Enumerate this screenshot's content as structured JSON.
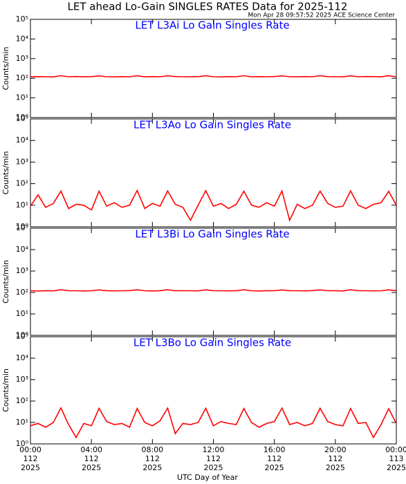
{
  "title": "LET ahead Lo-Gain SINGLES RATES Data for 2025-112",
  "timestamp": "Mon Apr 28 09:57:52 2025 ACE Science Center",
  "xlabel": "UTC Day of Year",
  "chart_data": [
    {
      "type": "line",
      "title": "LET L3Ai Lo Gain Singles Rate",
      "ylabel": "Counts/min",
      "color": "#ff0000",
      "ylog": true,
      "xlim": [
        0,
        24
      ],
      "xticks": [
        0,
        4,
        8,
        12,
        16,
        20,
        24
      ],
      "ylim": [
        1,
        100000
      ],
      "yticks": [
        {
          "value": 1,
          "label": "10⁰"
        },
        {
          "value": 10,
          "label": "10¹"
        },
        {
          "value": 100,
          "label": "10²"
        },
        {
          "value": 1000,
          "label": "10³"
        },
        {
          "value": 10000,
          "label": "10⁴"
        },
        {
          "value": 100000,
          "label": "10⁵"
        }
      ],
      "x": [
        0,
        0.5,
        1,
        1.5,
        2,
        2.5,
        3,
        3.5,
        4,
        4.5,
        5,
        5.5,
        6,
        6.5,
        7,
        7.5,
        8,
        8.5,
        9,
        9.5,
        10,
        10.5,
        11,
        11.5,
        12,
        12.5,
        13,
        13.5,
        14,
        14.5,
        15,
        15.5,
        16,
        16.5,
        17,
        17.5,
        18,
        18.5,
        19,
        19.5,
        20,
        20.5,
        21,
        21.5,
        22,
        22.5,
        23,
        23.5,
        24
      ],
      "values": [
        119,
        121,
        120,
        118,
        135,
        120,
        122,
        119,
        121,
        133,
        120,
        118,
        121,
        120,
        134,
        119,
        121,
        120,
        133,
        122,
        120,
        119,
        121,
        134,
        120,
        118,
        121,
        120,
        135,
        119,
        121,
        120,
        122,
        133,
        120,
        119,
        121,
        120,
        134,
        121,
        120,
        119,
        133,
        120,
        122,
        121,
        119,
        134,
        120
      ]
    },
    {
      "type": "line",
      "title": "LET L3Ao Lo Gain Singles Rate",
      "ylabel": "Counts/min",
      "color": "#ff0000",
      "ylog": true,
      "xlim": [
        0,
        24
      ],
      "xticks": [
        0,
        4,
        8,
        12,
        16,
        20,
        24
      ],
      "ylim": [
        1,
        100000
      ],
      "yticks": [
        {
          "value": 1,
          "label": "10⁰"
        },
        {
          "value": 10,
          "label": "10¹"
        },
        {
          "value": 100,
          "label": "10²"
        },
        {
          "value": 1000,
          "label": "10³"
        },
        {
          "value": 10000,
          "label": "10⁴"
        },
        {
          "value": 100000,
          "label": "10⁵"
        }
      ],
      "x": [
        0,
        0.5,
        1,
        1.5,
        2,
        2.5,
        3,
        3.5,
        4,
        4.5,
        5,
        5.5,
        6,
        6.5,
        7,
        7.5,
        8,
        8.5,
        9,
        9.5,
        10,
        10.5,
        11,
        11.5,
        12,
        12.5,
        13,
        13.5,
        14,
        14.5,
        15,
        15.5,
        16,
        16.5,
        17,
        17.5,
        18,
        18.5,
        19,
        19.5,
        20,
        20.5,
        21,
        21.5,
        22,
        22.5,
        23,
        23.5,
        24
      ],
      "values": [
        9,
        30,
        8,
        12,
        45,
        7,
        11,
        10,
        6,
        45,
        9,
        13,
        8,
        10,
        48,
        7,
        12,
        9,
        46,
        11,
        8,
        2,
        10,
        47,
        9,
        12,
        7,
        11,
        45,
        10,
        8,
        13,
        9,
        46,
        2,
        11,
        7,
        10,
        45,
        12,
        8,
        9,
        46,
        10,
        7,
        11,
        13,
        44,
        10
      ]
    },
    {
      "type": "line",
      "title": "LET L3Bi Lo Gain Singles Rate",
      "ylabel": "Counts/min",
      "color": "#ff0000",
      "ylog": true,
      "xlim": [
        0,
        24
      ],
      "xticks": [
        0,
        4,
        8,
        12,
        16,
        20,
        24
      ],
      "ylim": [
        1,
        100000
      ],
      "yticks": [
        {
          "value": 1,
          "label": "10⁰"
        },
        {
          "value": 10,
          "label": "10¹"
        },
        {
          "value": 100,
          "label": "10²"
        },
        {
          "value": 1000,
          "label": "10³"
        },
        {
          "value": 10000,
          "label": "10⁴"
        },
        {
          "value": 100000,
          "label": "10⁵"
        }
      ],
      "x": [
        0,
        0.5,
        1,
        1.5,
        2,
        2.5,
        3,
        3.5,
        4,
        4.5,
        5,
        5.5,
        6,
        6.5,
        7,
        7.5,
        8,
        8.5,
        9,
        9.5,
        10,
        10.5,
        11,
        11.5,
        12,
        12.5,
        13,
        13.5,
        14,
        14.5,
        15,
        15.5,
        16,
        16.5,
        17,
        17.5,
        18,
        18.5,
        19,
        19.5,
        20,
        20.5,
        21,
        21.5,
        22,
        22.5,
        23,
        23.5,
        24
      ],
      "values": [
        120,
        118,
        121,
        119,
        134,
        121,
        120,
        118,
        120,
        132,
        121,
        119,
        120,
        122,
        133,
        120,
        118,
        121,
        134,
        120,
        121,
        120,
        119,
        133,
        121,
        120,
        119,
        121,
        134,
        120,
        118,
        121,
        120,
        132,
        121,
        120,
        119,
        122,
        133,
        120,
        121,
        118,
        134,
        121,
        120,
        119,
        120,
        133,
        121
      ]
    },
    {
      "type": "line",
      "title": "LET L3Bo Lo Gain Singles Rate",
      "ylabel": "Counts/min",
      "color": "#ff0000",
      "ylog": true,
      "xlim": [
        0,
        24
      ],
      "xticks": [
        {
          "value": 0,
          "label": [
            "00:00",
            "112",
            "2025"
          ]
        },
        {
          "value": 4,
          "label": [
            "04:00",
            "112",
            "2025"
          ]
        },
        {
          "value": 8,
          "label": [
            "08:00",
            "112",
            "2025"
          ]
        },
        {
          "value": 12,
          "label": [
            "12:00",
            "112",
            "2025"
          ]
        },
        {
          "value": 16,
          "label": [
            "16:00",
            "112",
            "2025"
          ]
        },
        {
          "value": 20,
          "label": [
            "20:00",
            "112",
            "2025"
          ]
        },
        {
          "value": 24,
          "label": [
            "00:00",
            "113",
            "2025"
          ]
        }
      ],
      "ylim": [
        1,
        100000
      ],
      "yticks": [
        {
          "value": 1,
          "label": "10⁰"
        },
        {
          "value": 10,
          "label": "10¹"
        },
        {
          "value": 100,
          "label": "10²"
        },
        {
          "value": 1000,
          "label": "10³"
        },
        {
          "value": 10000,
          "label": "10⁴"
        },
        {
          "value": 100000,
          "label": "10⁵"
        }
      ],
      "x": [
        0,
        0.5,
        1,
        1.5,
        2,
        2.5,
        3,
        3.5,
        4,
        4.5,
        5,
        5.5,
        6,
        6.5,
        7,
        7.5,
        8,
        8.5,
        9,
        9.5,
        10,
        10.5,
        11,
        11.5,
        12,
        12.5,
        13,
        13.5,
        14,
        14.5,
        15,
        15.5,
        16,
        16.5,
        17,
        17.5,
        18,
        18.5,
        19,
        19.5,
        20,
        20.5,
        21,
        21.5,
        22,
        22.5,
        23,
        23.5,
        24
      ],
      "values": [
        7,
        9,
        6,
        10,
        48,
        8,
        2,
        9,
        7,
        46,
        11,
        8,
        9,
        6,
        45,
        10,
        7,
        12,
        47,
        3,
        9,
        8,
        10,
        46,
        7,
        11,
        9,
        8,
        45,
        10,
        6,
        9,
        11,
        47,
        8,
        10,
        7,
        9,
        46,
        11,
        8,
        7,
        45,
        9,
        10,
        2,
        8,
        44,
        9
      ]
    }
  ]
}
